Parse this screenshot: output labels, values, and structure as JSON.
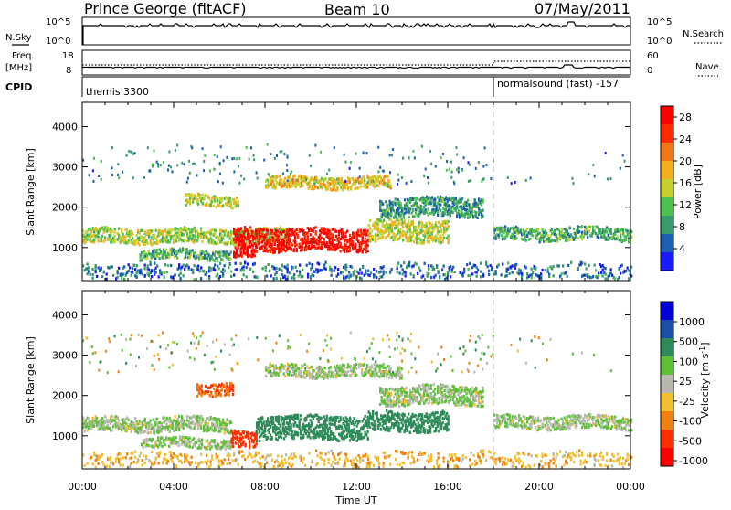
{
  "header": {
    "station": "Prince George (fitACF)",
    "beam": "Beam 10",
    "date": "07/May/2011"
  },
  "side_labels": {
    "nsky": "N.Sky",
    "nsearch": "N.Search",
    "freq": "Freq.",
    "mhz": "[MHz]",
    "nave": "Nave",
    "cpid": "CPID"
  },
  "status_panel": {
    "nsky_ticks": [
      "10^5",
      "10^0"
    ],
    "nsearch_ticks": [
      "10^5",
      "10^0"
    ],
    "freq_ticks": [
      "18",
      "8"
    ],
    "nave_ticks": [
      "60",
      "0"
    ]
  },
  "cpid": {
    "left_label": "themis 3300",
    "right_label": "normalsound (fast) -157",
    "switch_time_h": 18.0
  },
  "chart_data": [
    {
      "type": "heatmap",
      "panel": "power",
      "ylabel": "Slant Range [km]",
      "xlabel": "",
      "x_ticks": [
        "00:00",
        "04:00",
        "08:00",
        "12:00",
        "16:00",
        "20:00",
        "00:00"
      ],
      "xlim_hours": [
        0,
        24
      ],
      "y_ticks": [
        1000,
        2000,
        3000,
        4000
      ],
      "ylim": [
        180,
        4600
      ],
      "colorbar": {
        "label": "Power [dB]",
        "ticks": [
          "4",
          "8",
          "12",
          "16",
          "20",
          "24",
          "28"
        ],
        "range": [
          0,
          30
        ],
        "colors": [
          "#1a1aff",
          "#1a5fb0",
          "#3a9a6a",
          "#4fbf4f",
          "#c8d030",
          "#f0b020",
          "#f07818",
          "#ff2a00",
          "#ff0000"
        ]
      },
      "echo_regions": [
        {
          "t0": 0.0,
          "t1": 9.0,
          "r_center": 1280,
          "r_width": 260,
          "power": 14
        },
        {
          "t0": 2.5,
          "t1": 6.5,
          "r_center": 820,
          "r_width": 170,
          "power": 10
        },
        {
          "t0": 6.6,
          "t1": 7.6,
          "r_center": 1100,
          "r_width": 520,
          "power": 29
        },
        {
          "t0": 7.6,
          "t1": 12.5,
          "r_center": 1190,
          "r_width": 400,
          "power": 28
        },
        {
          "t0": 12.5,
          "t1": 16.0,
          "r_center": 1400,
          "r_width": 380,
          "power": 15
        },
        {
          "t0": 8.0,
          "t1": 13.5,
          "r_center": 2600,
          "r_width": 210,
          "power": 17
        },
        {
          "t0": 4.5,
          "t1": 6.8,
          "r_center": 2150,
          "r_width": 200,
          "power": 15
        },
        {
          "t0": 13.0,
          "t1": 17.5,
          "r_center": 2000,
          "r_width": 340,
          "power": 9
        },
        {
          "t0": 18.0,
          "t1": 24.0,
          "r_center": 1330,
          "r_width": 230,
          "power": 10
        },
        {
          "t0": 0.0,
          "t1": 24.0,
          "r_center": 420,
          "r_width": 260,
          "power": 6
        }
      ]
    },
    {
      "type": "heatmap",
      "panel": "velocity",
      "ylabel": "Slant Range [km]",
      "xlabel": "Time UT",
      "x_ticks": [
        "00:00",
        "04:00",
        "08:00",
        "12:00",
        "16:00",
        "20:00",
        "00:00"
      ],
      "xlim_hours": [
        0,
        24
      ],
      "y_ticks": [
        1000,
        2000,
        3000,
        4000
      ],
      "ylim": [
        180,
        4600
      ],
      "colorbar": {
        "label": "Velocity [m s^-1]",
        "ticks": [
          "1000",
          "500",
          "100",
          "25",
          "-25",
          "-100",
          "-500",
          "-1000"
        ],
        "colors": [
          "#0000d8",
          "#1a4fa8",
          "#2f8a5a",
          "#5fbf3a",
          "#b8b8b0",
          "#f0c030",
          "#f08010",
          "#ff3000",
          "#ff0000"
        ]
      },
      "echo_regions": [
        {
          "t0": 0.0,
          "t1": 6.5,
          "r_center": 1280,
          "r_width": 260,
          "velocity": 0
        },
        {
          "t0": 2.5,
          "t1": 6.5,
          "r_center": 820,
          "r_width": 170,
          "velocity": 0
        },
        {
          "t0": 5.0,
          "t1": 6.6,
          "r_center": 2150,
          "r_width": 220,
          "velocity": -300
        },
        {
          "t0": 6.5,
          "t1": 7.6,
          "r_center": 900,
          "r_width": 300,
          "velocity": -600
        },
        {
          "t0": 7.6,
          "t1": 12.5,
          "r_center": 1200,
          "r_width": 420,
          "velocity": 200
        },
        {
          "t0": 12.5,
          "t1": 16.0,
          "r_center": 1350,
          "r_width": 350,
          "velocity": 150
        },
        {
          "t0": 8.0,
          "t1": 14.0,
          "r_center": 2600,
          "r_width": 220,
          "velocity": 0
        },
        {
          "t0": 13.0,
          "t1": 17.5,
          "r_center": 2000,
          "r_width": 340,
          "velocity": 0
        },
        {
          "t0": 18.0,
          "t1": 24.0,
          "r_center": 1330,
          "r_width": 230,
          "velocity": 0
        },
        {
          "t0": 0.0,
          "t1": 24.0,
          "r_center": 420,
          "r_width": 260,
          "velocity": -50
        }
      ]
    }
  ]
}
